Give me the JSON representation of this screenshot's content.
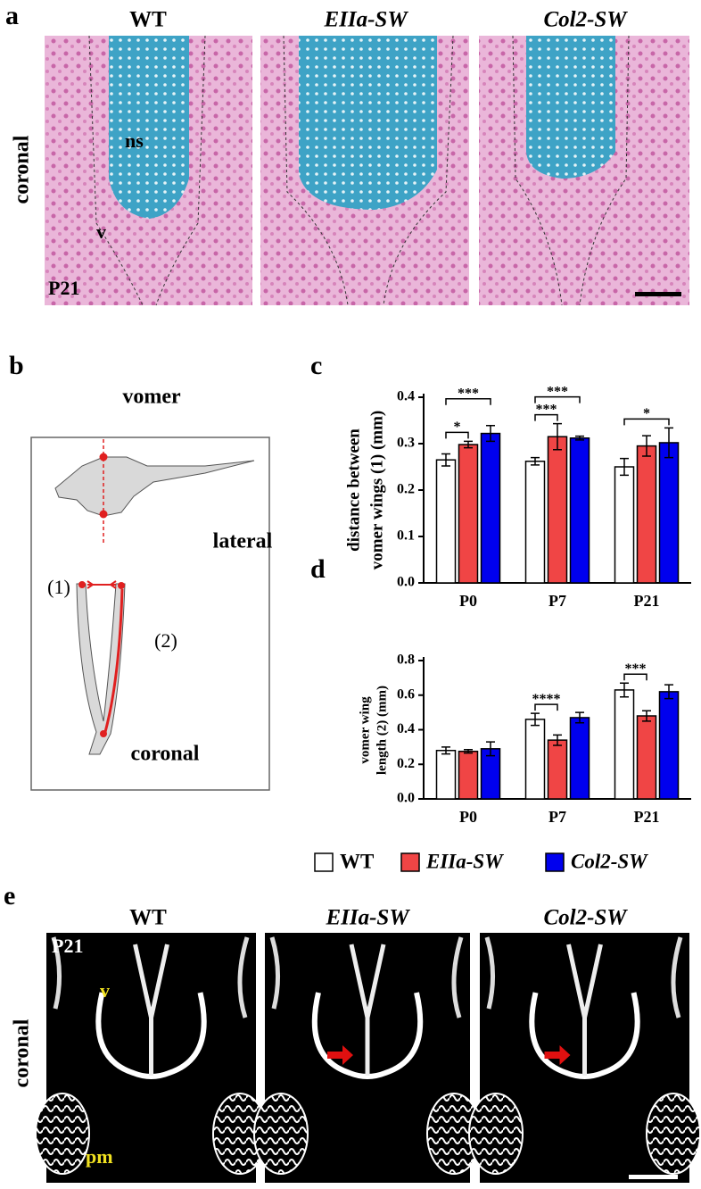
{
  "panel_a": {
    "label": "a",
    "titles": [
      "WT",
      "EIIa-SW",
      "Col2-SW"
    ],
    "side_label": "coronal",
    "ns": "ns",
    "v": "v",
    "age": "P21"
  },
  "panel_b": {
    "label": "b",
    "title": "vomer",
    "lateral": "lateral",
    "measure_1": "(1)",
    "measure_2": "(2)",
    "coronal": "coronal"
  },
  "panel_e": {
    "label": "e",
    "titles": [
      "WT",
      "EIIa-SW",
      "Col2-SW"
    ],
    "side_label": "coronal",
    "age": "P21",
    "v": "v",
    "pm": "pm"
  },
  "chart_data": [
    {
      "type": "bar",
      "label": "c",
      "ylabel": [
        "distance between",
        "vomer wings (1) (mm)"
      ],
      "categories": [
        "P0",
        "P7",
        "P21"
      ],
      "series": [
        {
          "color": "#ffffff",
          "values": [
            0.265,
            0.262,
            0.25
          ],
          "errors": [
            0.013,
            0.008,
            0.018
          ]
        },
        {
          "color": "#f04545",
          "values": [
            0.298,
            0.315,
            0.295
          ],
          "errors": [
            0.007,
            0.028,
            0.022
          ]
        },
        {
          "color": "#0000ee",
          "values": [
            0.322,
            0.312,
            0.302
          ],
          "errors": [
            0.017,
            0.004,
            0.032
          ]
        }
      ],
      "ylim": [
        0,
        0.4
      ],
      "yticks": [
        {
          "value": 0,
          "label": "0.0"
        },
        0.1,
        0.2,
        0.3,
        0.4
      ],
      "annotations": [
        {
          "category": 0,
          "pair": [
            0,
            1
          ],
          "text": "*"
        },
        {
          "category": 0,
          "pair": [
            0,
            2
          ],
          "text": "***"
        },
        {
          "category": 1,
          "pair": [
            0,
            1
          ],
          "text": "***"
        },
        {
          "category": 1,
          "pair": [
            0,
            2
          ],
          "text": "***"
        },
        {
          "category": 2,
          "pair": [
            0,
            2
          ],
          "text": "*"
        }
      ]
    },
    {
      "type": "bar",
      "label": "d",
      "ylabel": [
        "vomer wing",
        "length (2) (mm)"
      ],
      "categories": [
        "P0",
        "P7",
        "P21"
      ],
      "series": [
        {
          "name": "WT",
          "color": "#ffffff",
          "values": [
            0.28,
            0.46,
            0.63
          ],
          "errors": [
            0.02,
            0.035,
            0.04
          ]
        },
        {
          "name": "EIIa-SW",
          "color": "#f04545",
          "values": [
            0.275,
            0.34,
            0.48
          ],
          "errors": [
            0.01,
            0.03,
            0.03
          ]
        },
        {
          "name": "Col2-SW",
          "color": "#0000ee",
          "values": [
            0.29,
            0.47,
            0.62
          ],
          "errors": [
            0.04,
            0.03,
            0.04
          ]
        }
      ],
      "ylim": [
        0,
        0.8
      ],
      "yticks": [
        {
          "value": 0,
          "label": "0.0"
        },
        0.2,
        0.4,
        0.6,
        0.8
      ],
      "annotations": [
        {
          "category": 1,
          "pair": [
            0,
            1
          ],
          "text": "****"
        },
        {
          "category": 2,
          "pair": [
            0,
            1
          ],
          "text": "***"
        }
      ]
    }
  ]
}
